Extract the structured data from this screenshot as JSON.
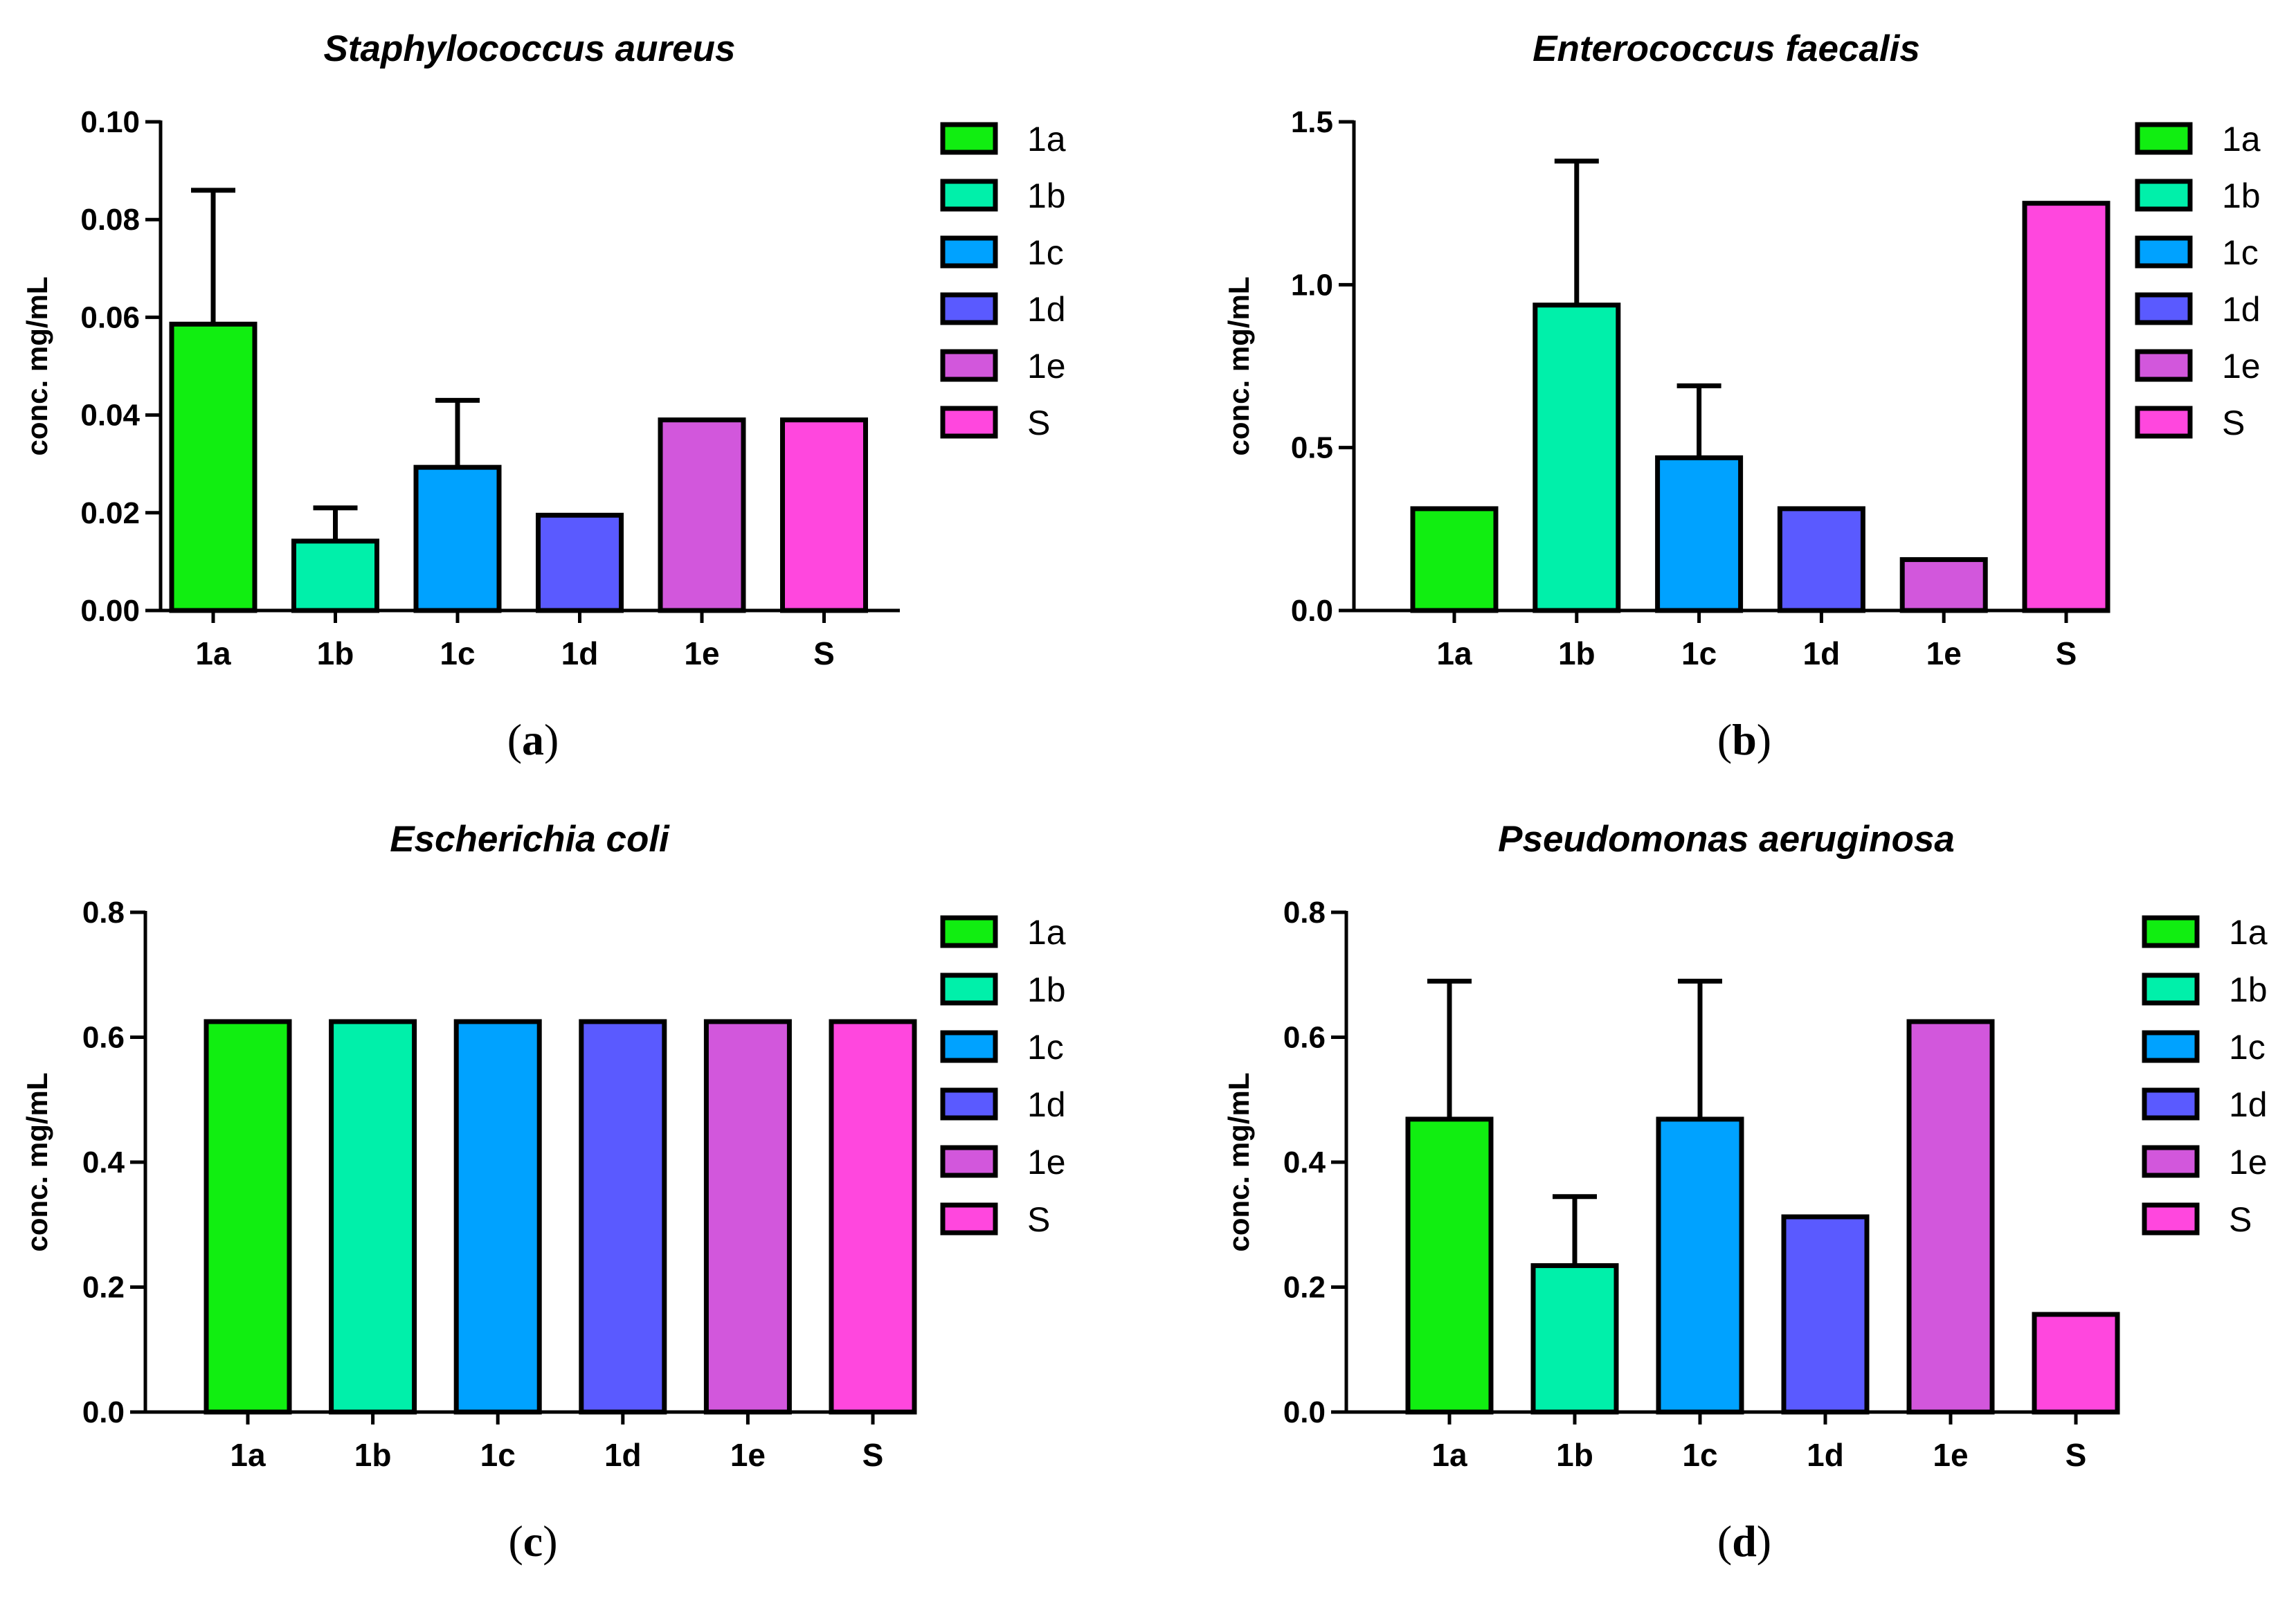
{
  "chart_data": [
    {
      "type": "bar",
      "panel": "(a)",
      "title": "Staphylococcus aureus",
      "xlabel": "",
      "ylabel": "conc. mg/mL",
      "ylim": [
        0,
        0.1
      ],
      "yticks": [
        "0.00",
        "0.02",
        "0.04",
        "0.06",
        "0.08",
        "0.10"
      ],
      "categories": [
        "1a",
        "1b",
        "1c",
        "1d",
        "1e",
        "S"
      ],
      "values": [
        0.0586,
        0.0142,
        0.0293,
        0.0195,
        0.039,
        0.039
      ],
      "errors": [
        0.0274,
        0.0068,
        0.0137,
        0,
        0,
        0
      ],
      "colors": [
        "#11ee11",
        "#00f0aa",
        "#00a2ff",
        "#5a5aff",
        "#d257dc",
        "#ff47de"
      ],
      "legend": [
        "1a",
        "1b",
        "1c",
        "1d",
        "1e",
        "S"
      ]
    },
    {
      "type": "bar",
      "panel": "(b)",
      "title": "Enterococcus faecalis",
      "xlabel": "",
      "ylabel": "conc. mg/mL",
      "ylim": [
        0,
        1.5
      ],
      "yticks": [
        "0.0",
        "0.5",
        "1.0",
        "1.5"
      ],
      "categories": [
        "1a",
        "1b",
        "1c",
        "1d",
        "1e",
        "S"
      ],
      "values": [
        0.3125,
        0.9375,
        0.4688,
        0.3125,
        0.1563,
        1.25
      ],
      "errors": [
        0,
        0.4419,
        0.221,
        0,
        0,
        0
      ],
      "colors": [
        "#11ee11",
        "#00f0aa",
        "#00a2ff",
        "#5a5aff",
        "#d257dc",
        "#ff47de"
      ],
      "legend": [
        "1a",
        "1b",
        "1c",
        "1d",
        "1e",
        "S"
      ]
    },
    {
      "type": "bar",
      "panel": "(c)",
      "title": "Escherichia coli",
      "xlabel": "",
      "ylabel": "conc. mg/mL",
      "ylim": [
        0,
        0.8
      ],
      "yticks": [
        "0.0",
        "0.2",
        "0.4",
        "0.6",
        "0.8"
      ],
      "categories": [
        "1a",
        "1b",
        "1c",
        "1d",
        "1e",
        "S"
      ],
      "values": [
        0.625,
        0.625,
        0.625,
        0.625,
        0.625,
        0.625
      ],
      "errors": [
        0,
        0,
        0,
        0,
        0,
        0
      ],
      "colors": [
        "#11ee11",
        "#00f0aa",
        "#00a2ff",
        "#5a5aff",
        "#d257dc",
        "#ff47de"
      ],
      "legend": [
        "1a",
        "1b",
        "1c",
        "1d",
        "1e",
        "S"
      ]
    },
    {
      "type": "bar",
      "panel": "(d)",
      "title": "Pseudomonas aeruginosa",
      "xlabel": "",
      "ylabel": "conc. mg/mL",
      "ylim": [
        0,
        0.8
      ],
      "yticks": [
        "0.0",
        "0.2",
        "0.4",
        "0.6",
        "0.8"
      ],
      "categories": [
        "1a",
        "1b",
        "1c",
        "1d",
        "1e",
        "S"
      ],
      "values": [
        0.4688,
        0.2344,
        0.4688,
        0.3125,
        0.625,
        0.1563
      ],
      "errors": [
        0.221,
        0.1105,
        0.221,
        0,
        0,
        0
      ],
      "colors": [
        "#11ee11",
        "#00f0aa",
        "#00a2ff",
        "#5a5aff",
        "#d257dc",
        "#ff47de"
      ],
      "legend": [
        "1a",
        "1b",
        "1c",
        "1d",
        "1e",
        "S"
      ]
    }
  ]
}
